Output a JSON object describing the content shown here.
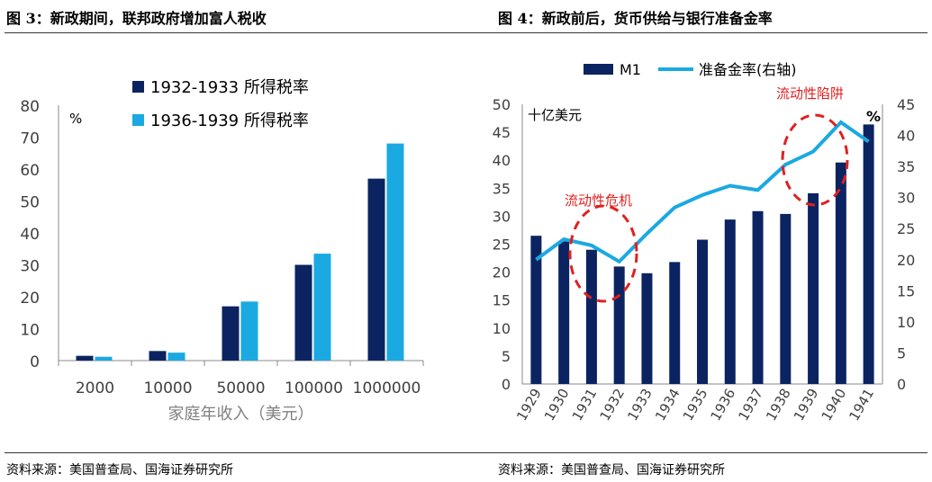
{
  "left": {
    "figure_title": "图 3：新政期间，联邦政府增加富人税收",
    "source": "资料来源：美国普查局、国海证券研究所"
  },
  "right": {
    "figure_title": "图 4：新政前后，货币供给与银行准备金率",
    "source": "资料来源：美国普查局、国海证券研究所"
  },
  "colors": {
    "navy": "#0B2461",
    "cyan": "#1BA9E1",
    "annotation_red": "#E02020",
    "axis_text": "#404040"
  },
  "chart_data": [
    {
      "type": "bar",
      "categories": [
        "2000",
        "10000",
        "50000",
        "100000",
        "1000000"
      ],
      "series": [
        {
          "name": "1932-1933 所得税率",
          "values": [
            1.5,
            3,
            17,
            30,
            57
          ]
        },
        {
          "name": "1936-1939 所得税率",
          "values": [
            1.2,
            2.5,
            18.5,
            33.5,
            68
          ]
        }
      ],
      "xlabel": "家庭年收入（美元）",
      "unit_label": "%",
      "ylim": [
        0,
        80
      ],
      "yticks": [
        "0",
        "10",
        "20",
        "30",
        "40",
        "50",
        "60",
        "70",
        "80"
      ],
      "grid": false,
      "legend_position": "top-center"
    },
    {
      "type": "bar+line",
      "categories": [
        "1929",
        "1930",
        "1931",
        "1932",
        "1933",
        "1934",
        "1935",
        "1936",
        "1937",
        "1938",
        "1939",
        "1940",
        "1941"
      ],
      "series": [
        {
          "name": "M1",
          "type": "bar",
          "axis": "left",
          "values": [
            26.5,
            25.5,
            24,
            21,
            19.8,
            21.8,
            25.8,
            29.4,
            30.9,
            30.4,
            34.1,
            39.6,
            46.4
          ]
        },
        {
          "name": "准备金率(右轴)",
          "type": "line",
          "axis": "right",
          "values": [
            20,
            23.3,
            22.3,
            19.7,
            24.2,
            28.4,
            30.4,
            31.9,
            31.2,
            35.3,
            37.4,
            42.1,
            39
          ]
        }
      ],
      "left_unit": "十亿美元",
      "right_unit": "%",
      "ylim_left": [
        0,
        50
      ],
      "ylim_right": [
        0,
        45
      ],
      "yticks_left": [
        "0",
        "5",
        "10",
        "15",
        "20",
        "25",
        "30",
        "35",
        "40",
        "45",
        "50"
      ],
      "yticks_right": [
        "0",
        "5",
        "10",
        "15",
        "20",
        "25",
        "30",
        "35",
        "40",
        "45"
      ],
      "annotations": [
        "流动性危机",
        "流动性陷阱"
      ],
      "grid": false,
      "legend_position": "top-center"
    }
  ]
}
